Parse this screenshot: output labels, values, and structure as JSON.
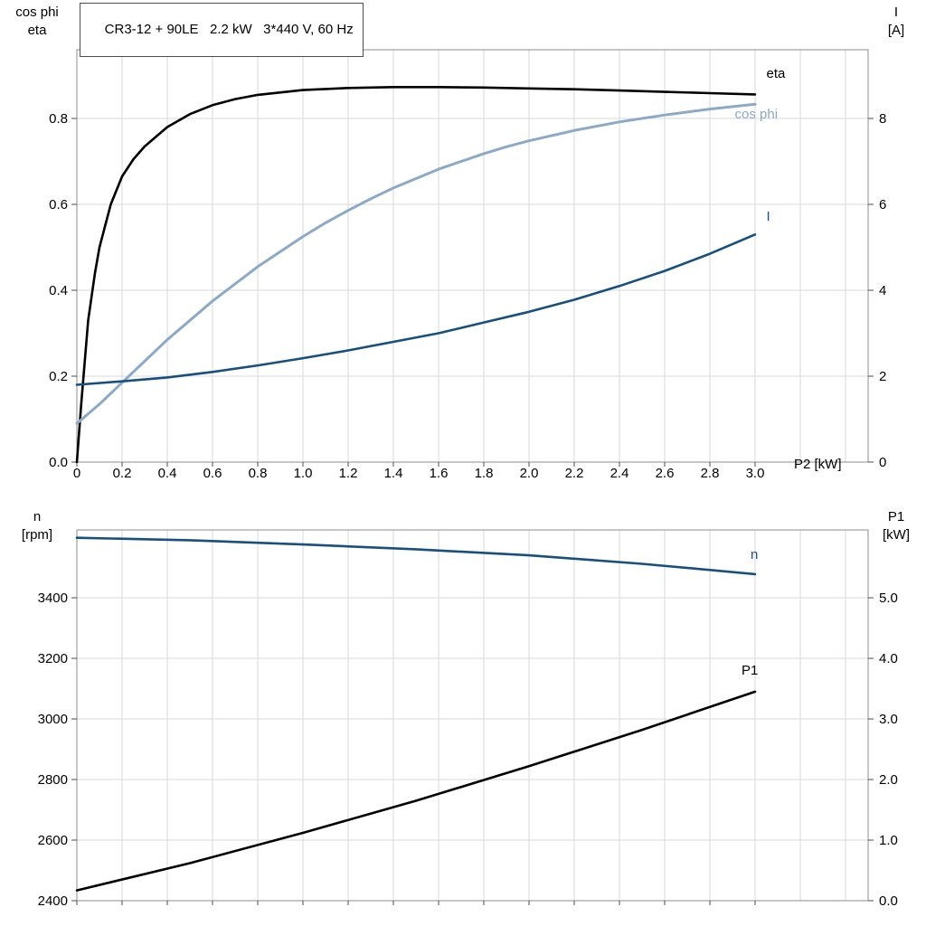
{
  "title": "CR3-12 + 90LE   2.2 kW   3*440 V, 60 Hz",
  "colors": {
    "black": "#000000",
    "light_blue": "#8ca9c7",
    "dark_blue": "#17507f",
    "grid": "#d9d9d9",
    "frame": "#8c8c8c",
    "tick": "#4d4d4d",
    "text": "#000000",
    "background": "#ffffff"
  },
  "labels": {
    "top_left_line1": "cos phi",
    "top_left_line2": "eta",
    "top_right_line1": "I",
    "top_right_line2": "[A]",
    "x_axis_label": "P2 [kW]",
    "bottom_left_line1": "n",
    "bottom_left_line2": "[rpm]",
    "bottom_right_line1": "P1",
    "bottom_right_line2": "[kW]"
  },
  "chart_data": [
    {
      "id": "motor-electrical",
      "type": "line",
      "title": "CR3-12 + 90LE   2.2 kW   3*440 V, 60 Hz",
      "x_axis": {
        "label": "P2 [kW]",
        "range": [
          0,
          3.5
        ],
        "ticks": [
          0,
          0.2,
          0.4,
          0.6,
          0.8,
          1.0,
          1.2,
          1.4,
          1.6,
          1.8,
          2.0,
          2.2,
          2.4,
          2.6,
          2.8,
          3.0
        ],
        "tick_labels": [
          "0",
          "0.2",
          "0.4",
          "0.6",
          "0.8",
          "1.0",
          "1.2",
          "1.4",
          "1.6",
          "1.8",
          "2.0",
          "2.2",
          "2.4",
          "2.6",
          "2.8",
          "3.0"
        ],
        "grid": [
          0.2,
          0.4,
          0.6,
          0.8,
          1.0,
          1.2,
          1.4,
          1.6,
          1.8,
          2.0,
          2.2,
          2.4,
          2.6,
          2.8,
          3.0,
          3.2,
          3.4
        ]
      },
      "y_left": {
        "label": "cos phi / eta",
        "range": [
          0,
          0.96
        ],
        "ticks": [
          0,
          0.2,
          0.4,
          0.6,
          0.8
        ],
        "tick_labels": [
          "0.0",
          "0.2",
          "0.4",
          "0.6",
          "0.8"
        ],
        "grid": [
          0.2,
          0.4,
          0.6,
          0.8
        ]
      },
      "y_right": {
        "label": "I [A]",
        "range": [
          0,
          9.6
        ],
        "ticks": [
          0,
          2,
          4,
          6,
          8
        ],
        "tick_labels": [
          "0",
          "2",
          "4",
          "6",
          "8"
        ]
      },
      "grid_on": true,
      "series": [
        {
          "name": "eta",
          "axis": "left",
          "color_key": "black",
          "width": 2.6,
          "x": [
            0,
            0.02,
            0.05,
            0.08,
            0.1,
            0.15,
            0.2,
            0.25,
            0.3,
            0.4,
            0.5,
            0.6,
            0.7,
            0.8,
            1.0,
            1.2,
            1.4,
            1.6,
            1.8,
            2.0,
            2.2,
            2.4,
            2.6,
            2.8,
            3.0
          ],
          "y": [
            0,
            0.14,
            0.33,
            0.44,
            0.5,
            0.6,
            0.665,
            0.705,
            0.735,
            0.78,
            0.81,
            0.831,
            0.845,
            0.855,
            0.866,
            0.871,
            0.873,
            0.873,
            0.872,
            0.87,
            0.868,
            0.865,
            0.862,
            0.859,
            0.856
          ],
          "label": {
            "text": "eta",
            "x": 3.05,
            "y": 0.895
          }
        },
        {
          "name": "cos phi",
          "axis": "left",
          "color_key": "light_blue",
          "width": 3,
          "x": [
            0,
            0.1,
            0.2,
            0.3,
            0.4,
            0.5,
            0.6,
            0.7,
            0.8,
            0.9,
            1.0,
            1.1,
            1.2,
            1.3,
            1.4,
            1.5,
            1.6,
            1.7,
            1.8,
            1.9,
            2.0,
            2.2,
            2.4,
            2.6,
            2.8,
            3.0
          ],
          "y": [
            0.09,
            0.135,
            0.185,
            0.235,
            0.285,
            0.33,
            0.375,
            0.415,
            0.455,
            0.49,
            0.525,
            0.557,
            0.586,
            0.613,
            0.638,
            0.66,
            0.682,
            0.7,
            0.718,
            0.734,
            0.748,
            0.772,
            0.792,
            0.808,
            0.822,
            0.833
          ],
          "label": {
            "text": "cos phi",
            "x": 2.91,
            "y": 0.8
          }
        },
        {
          "name": "I",
          "axis": "right",
          "color_key": "dark_blue",
          "width": 2.6,
          "x": [
            0,
            0.2,
            0.4,
            0.6,
            0.8,
            1.0,
            1.2,
            1.4,
            1.6,
            1.8,
            2.0,
            2.2,
            2.4,
            2.6,
            2.8,
            3.0
          ],
          "y": [
            1.8,
            1.88,
            1.97,
            2.1,
            2.25,
            2.42,
            2.6,
            2.8,
            3.0,
            3.25,
            3.5,
            3.78,
            4.1,
            4.45,
            4.85,
            5.3
          ],
          "label": {
            "text": "I",
            "x": 3.05,
            "y": 5.62
          }
        }
      ]
    },
    {
      "id": "speed-power",
      "type": "line",
      "title": "",
      "x_axis": {
        "label": "",
        "range": [
          0,
          3.5
        ],
        "ticks": [
          0,
          0.2,
          0.4,
          0.6,
          0.8,
          1.0,
          1.2,
          1.4,
          1.6,
          1.8,
          2.0,
          2.2,
          2.4,
          2.6,
          2.8,
          3.0
        ],
        "tick_labels": null,
        "grid": [
          0.2,
          0.4,
          0.6,
          0.8,
          1.0,
          1.2,
          1.4,
          1.6,
          1.8,
          2.0,
          2.2,
          2.4,
          2.6,
          2.8,
          3.0,
          3.2,
          3.4
        ]
      },
      "y_left": {
        "label": "n [rpm]",
        "range": [
          2400,
          3624
        ],
        "ticks": [
          2400,
          2600,
          2800,
          3000,
          3200,
          3400
        ],
        "tick_labels": [
          "2400",
          "2600",
          "2800",
          "3000",
          "3200",
          "3400"
        ],
        "grid": [
          2600,
          2800,
          3000,
          3200,
          3400
        ]
      },
      "y_right": {
        "label": "P1 [kW]",
        "range": [
          0,
          6.12
        ],
        "ticks": [
          0,
          1,
          2,
          3,
          4,
          5
        ],
        "tick_labels": [
          "0.0",
          "1.0",
          "2.0",
          "3.0",
          "4.0",
          "5.0"
        ]
      },
      "grid_on": true,
      "series": [
        {
          "name": "n",
          "axis": "left",
          "color_key": "dark_blue",
          "width": 2.6,
          "x": [
            0,
            0.5,
            1.0,
            1.5,
            2.0,
            2.5,
            3.0
          ],
          "y": [
            3598,
            3590,
            3576,
            3560,
            3540,
            3512,
            3478
          ],
          "label": {
            "text": "n",
            "x": 2.98,
            "y": 3528
          }
        },
        {
          "name": "P1",
          "axis": "right",
          "color_key": "black",
          "width": 2.6,
          "x": [
            0,
            0.5,
            1.0,
            1.5,
            2.0,
            2.5,
            3.0
          ],
          "y": [
            0.17,
            0.62,
            1.12,
            1.65,
            2.22,
            2.82,
            3.45
          ],
          "label": {
            "text": "P1",
            "x": 2.94,
            "y": 3.73
          }
        }
      ]
    }
  ]
}
